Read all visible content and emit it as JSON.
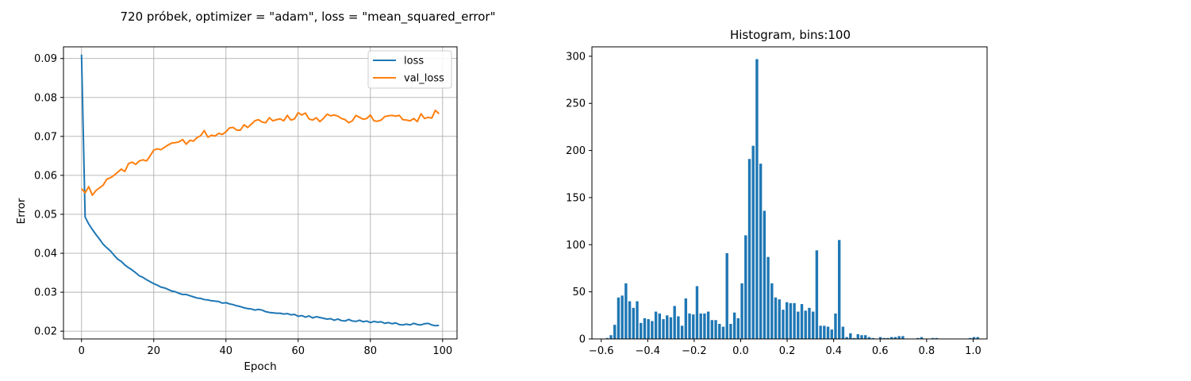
{
  "figure": {
    "suptitle": "720 próbek, optimizer = \"adam\", loss  = \"mean_squared_error\""
  },
  "chart_data": [
    {
      "type": "line",
      "title": "",
      "xlabel": "Epoch",
      "ylabel": "Error",
      "xlim": [
        -5,
        104
      ],
      "ylim": [
        0.018,
        0.093
      ],
      "grid": true,
      "xticks": [
        0,
        20,
        40,
        60,
        80,
        100
      ],
      "xtick_labels": [
        "0",
        "20",
        "40",
        "60",
        "80",
        "100"
      ],
      "yticks": [
        0.02,
        0.03,
        0.04,
        0.05,
        0.06,
        0.07,
        0.08,
        0.09
      ],
      "ytick_labels": [
        "0.02",
        "0.03",
        "0.04",
        "0.05",
        "0.06",
        "0.07",
        "0.08",
        "0.09"
      ],
      "legend_position": "top-right",
      "x": [
        0,
        1,
        2,
        3,
        4,
        5,
        6,
        7,
        8,
        9,
        10,
        11,
        12,
        13,
        14,
        15,
        16,
        17,
        18,
        19,
        20,
        21,
        22,
        23,
        24,
        25,
        26,
        27,
        28,
        29,
        30,
        31,
        32,
        33,
        34,
        35,
        36,
        37,
        38,
        39,
        40,
        41,
        42,
        43,
        44,
        45,
        46,
        47,
        48,
        49,
        50,
        51,
        52,
        53,
        54,
        55,
        56,
        57,
        58,
        59,
        60,
        61,
        62,
        63,
        64,
        65,
        66,
        67,
        68,
        69,
        70,
        71,
        72,
        73,
        74,
        75,
        76,
        77,
        78,
        79,
        80,
        81,
        82,
        83,
        84,
        85,
        86,
        87,
        88,
        89,
        90,
        91,
        92,
        93,
        94,
        95,
        96,
        97,
        98,
        99
      ],
      "series": [
        {
          "name": "loss",
          "color": "#1f77b4",
          "values": [
            0.091,
            0.0493,
            0.0475,
            0.0461,
            0.0448,
            0.0436,
            0.0423,
            0.0414,
            0.0406,
            0.0395,
            0.0385,
            0.0379,
            0.037,
            0.0363,
            0.0357,
            0.035,
            0.0342,
            0.0338,
            0.0332,
            0.0327,
            0.0322,
            0.0318,
            0.0313,
            0.0311,
            0.0307,
            0.0303,
            0.0301,
            0.0297,
            0.0294,
            0.0294,
            0.0291,
            0.0288,
            0.0285,
            0.0284,
            0.0281,
            0.028,
            0.0278,
            0.0277,
            0.0276,
            0.0272,
            0.0273,
            0.027,
            0.0268,
            0.0265,
            0.0263,
            0.026,
            0.0258,
            0.0257,
            0.0254,
            0.0256,
            0.0254,
            0.025,
            0.0248,
            0.0247,
            0.0246,
            0.0246,
            0.0244,
            0.0245,
            0.0242,
            0.0243,
            0.0238,
            0.024,
            0.0236,
            0.0239,
            0.0234,
            0.0237,
            0.0235,
            0.0233,
            0.0231,
            0.0232,
            0.0228,
            0.0231,
            0.0227,
            0.0226,
            0.023,
            0.0226,
            0.0225,
            0.0228,
            0.0224,
            0.0226,
            0.0222,
            0.0225,
            0.0223,
            0.0224,
            0.022,
            0.0222,
            0.0219,
            0.0221,
            0.0217,
            0.0216,
            0.0218,
            0.0216,
            0.022,
            0.0217,
            0.0216,
            0.0219,
            0.022,
            0.0216,
            0.0214,
            0.0215
          ]
        },
        {
          "name": "val_loss",
          "color": "#ff7f0e",
          "values": [
            0.0566,
            0.0555,
            0.0571,
            0.0549,
            0.0561,
            0.0568,
            0.0575,
            0.059,
            0.0594,
            0.06,
            0.0608,
            0.0616,
            0.061,
            0.063,
            0.0634,
            0.0628,
            0.0637,
            0.064,
            0.0637,
            0.065,
            0.0665,
            0.0668,
            0.0666,
            0.0672,
            0.0678,
            0.0683,
            0.0684,
            0.0686,
            0.0692,
            0.068,
            0.069,
            0.0688,
            0.0697,
            0.0702,
            0.0715,
            0.0698,
            0.0703,
            0.0701,
            0.0708,
            0.0705,
            0.0712,
            0.0722,
            0.0723,
            0.0716,
            0.0716,
            0.073,
            0.0723,
            0.0731,
            0.074,
            0.0743,
            0.0737,
            0.0735,
            0.0748,
            0.074,
            0.0743,
            0.0745,
            0.074,
            0.0754,
            0.0742,
            0.0745,
            0.0761,
            0.0755,
            0.076,
            0.0745,
            0.0742,
            0.0748,
            0.0738,
            0.0746,
            0.0757,
            0.0753,
            0.0755,
            0.0752,
            0.0746,
            0.0743,
            0.0735,
            0.074,
            0.0754,
            0.0749,
            0.0744,
            0.0746,
            0.0755,
            0.074,
            0.0739,
            0.0742,
            0.0751,
            0.0753,
            0.0754,
            0.0752,
            0.0754,
            0.0743,
            0.0742,
            0.074,
            0.0746,
            0.0738,
            0.0758,
            0.0746,
            0.0749,
            0.0747,
            0.0767,
            0.0758
          ]
        }
      ]
    },
    {
      "type": "bar",
      "title": "Histogram, bins:100",
      "xlabel": "",
      "ylabel": "",
      "xlim": [
        -0.64,
        1.06
      ],
      "ylim": [
        0,
        310
      ],
      "grid": false,
      "xticks": [
        -0.6,
        -0.4,
        -0.2,
        0.0,
        0.2,
        0.4,
        0.6,
        0.8,
        1.0
      ],
      "xtick_labels": [
        "−0.6",
        "−0.4",
        "−0.2",
        "0.0",
        "0.2",
        "0.4",
        "0.6",
        "0.8",
        "1.0"
      ],
      "yticks": [
        0,
        50,
        100,
        150,
        200,
        250,
        300
      ],
      "ytick_labels": [
        "0",
        "50",
        "100",
        "150",
        "200",
        "250",
        "300"
      ],
      "bin_start": -0.58,
      "bin_width": 0.0161,
      "color": "#1f77b4",
      "values": [
        1,
        4,
        15,
        44,
        46,
        59,
        40,
        33,
        40,
        17,
        22,
        21,
        19,
        29,
        27,
        21,
        25,
        23,
        35,
        24,
        14,
        43,
        27,
        26,
        56,
        27,
        27,
        29,
        20,
        20,
        16,
        13,
        91,
        16,
        28,
        22,
        59,
        110,
        191,
        205,
        297,
        186,
        136,
        87,
        59,
        44,
        42,
        31,
        39,
        38,
        38,
        29,
        37,
        30,
        33,
        29,
        94,
        14,
        14,
        13,
        10,
        27,
        105,
        13,
        2,
        6,
        1,
        5,
        4,
        4,
        2,
        1,
        0,
        2,
        1,
        1,
        2,
        2,
        3,
        3,
        0,
        0,
        0,
        1,
        2,
        0,
        0,
        1,
        1,
        0,
        0,
        0,
        0,
        0,
        0,
        0,
        0,
        1,
        2,
        2
      ]
    }
  ]
}
